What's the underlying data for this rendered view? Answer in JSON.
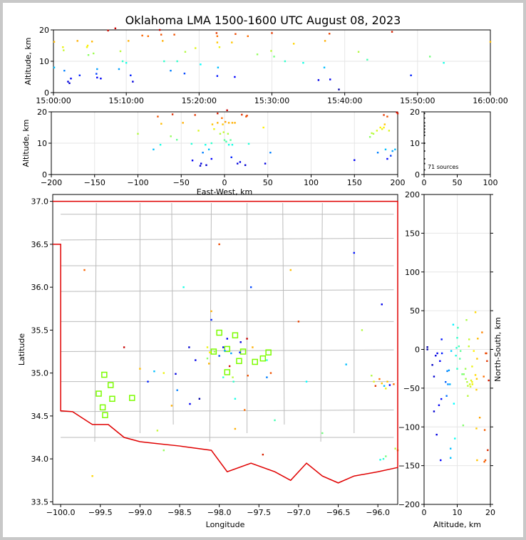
{
  "title": "Oklahoma LMA 1500-1600 UTC August 08, 2023",
  "colors": {
    "frame": "#c8c8c8",
    "border": "#e00000",
    "county": "#bbbbbb",
    "station": "#7cfc00",
    "grid": "#e6e6e6"
  },
  "chart_data": [
    {
      "type": "scatter",
      "id": "alt-time",
      "ylabel": "Altitude, km",
      "xlabel": "",
      "xlim": [
        0,
        60
      ],
      "ylim": [
        0,
        20
      ],
      "xticks": [
        0,
        10,
        20,
        30,
        40,
        50,
        60
      ],
      "xticklabels": [
        "15:00:00",
        "15:10:00",
        "15:20:00",
        "15:30:00",
        "15:40:00",
        "15:50:00",
        "16:00:00"
      ],
      "yticks": [
        0,
        10,
        20
      ],
      "yticklabels": [
        "0",
        "10",
        "20"
      ],
      "grid": true,
      "points": [
        [
          0.1,
          16.2
        ],
        [
          0.1,
          8
        ],
        [
          1.3,
          14.5
        ],
        [
          1.4,
          13.5
        ],
        [
          1.5,
          7
        ],
        [
          2.0,
          3.5
        ],
        [
          2.2,
          3
        ],
        [
          2.4,
          4.5
        ],
        [
          3.3,
          16.5
        ],
        [
          3.6,
          5.5
        ],
        [
          4.6,
          14.5
        ],
        [
          4.7,
          15
        ],
        [
          4.8,
          12
        ],
        [
          5.3,
          16.3
        ],
        [
          5.5,
          12.5
        ],
        [
          5.9,
          6
        ],
        [
          6.0,
          4.8
        ],
        [
          6.0,
          7.5
        ],
        [
          6.5,
          4.5
        ],
        [
          7.5,
          19.8
        ],
        [
          9.0,
          7.5
        ],
        [
          9.2,
          13.2
        ],
        [
          9.5,
          10
        ],
        [
          10.0,
          9.5
        ],
        [
          10.3,
          16.5
        ],
        [
          10.6,
          5.5
        ],
        [
          10.9,
          3.5
        ],
        [
          13.0,
          18
        ],
        [
          14.6,
          20
        ],
        [
          14.8,
          18.5
        ],
        [
          15.0,
          16.5
        ],
        [
          15.2,
          10
        ],
        [
          16.1,
          7
        ],
        [
          16.6,
          18.5
        ],
        [
          17.0,
          10
        ],
        [
          18.1,
          13
        ],
        [
          19.5,
          14.2
        ],
        [
          22.4,
          19
        ],
        [
          22.5,
          18
        ],
        [
          22.5,
          16
        ],
        [
          22.6,
          8
        ],
        [
          22.8,
          14.5
        ],
        [
          24.5,
          16
        ],
        [
          24.9,
          5
        ],
        [
          26.7,
          18
        ],
        [
          29.9,
          13.3
        ],
        [
          30.0,
          19
        ],
        [
          30.3,
          11.5
        ],
        [
          31.8,
          10
        ],
        [
          34.3,
          9.5
        ],
        [
          36.4,
          4
        ],
        [
          37.2,
          8
        ],
        [
          37.3,
          16.5
        ],
        [
          37.9,
          18.8
        ],
        [
          39.2,
          1
        ],
        [
          41.9,
          13
        ],
        [
          43.1,
          10.5
        ],
        [
          49.1,
          5.5
        ],
        [
          51.7,
          11.5
        ],
        [
          53.6,
          9.5
        ],
        [
          60.0,
          16.2
        ],
        [
          8.5,
          20.5
        ],
        [
          22.5,
          5.3
        ],
        [
          25.0,
          18.7
        ],
        [
          38.0,
          4.2
        ],
        [
          12.2,
          18.2
        ],
        [
          46.5,
          19.4
        ],
        [
          28.0,
          12.2
        ],
        [
          20.2,
          9.0
        ],
        [
          18.0,
          6.1
        ],
        [
          33.0,
          15.6
        ]
      ]
    },
    {
      "type": "scatter",
      "id": "alt-ew",
      "ylabel": "Altitude, km",
      "xlabel": "East-West, km",
      "xlim": [
        -200,
        200
      ],
      "ylim": [
        0,
        20
      ],
      "xticks": [
        -200,
        -150,
        -100,
        -50,
        0,
        50,
        100,
        150,
        200
      ],
      "xticklabels": [
        "−200",
        "−150",
        "−100",
        "−50",
        "0",
        "50",
        "100",
        "150",
        "200"
      ],
      "yticks": [
        0,
        10,
        20
      ],
      "yticklabels": [
        "0",
        "10",
        "20"
      ],
      "grid": true,
      "points": [
        [
          -100,
          13
        ],
        [
          -82,
          8
        ],
        [
          -77,
          18.5
        ],
        [
          -74,
          9.5
        ],
        [
          -73,
          16.2
        ],
        [
          -62,
          12.2
        ],
        [
          -60,
          19.2
        ],
        [
          -48,
          16.5
        ],
        [
          -38,
          9.8
        ],
        [
          -37,
          4.5
        ],
        [
          -34,
          19
        ],
        [
          -30,
          14
        ],
        [
          -28,
          2.8
        ],
        [
          -27,
          3.5
        ],
        [
          -25,
          7
        ],
        [
          -22,
          9.5
        ],
        [
          -15,
          10
        ],
        [
          -15,
          5
        ],
        [
          -14,
          16
        ],
        [
          -12,
          14.5
        ],
        [
          -8,
          19.5
        ],
        [
          -8,
          16.5
        ],
        [
          -5,
          13
        ],
        [
          -3,
          18
        ],
        [
          -2,
          16
        ],
        [
          -1,
          13.5
        ],
        [
          0,
          11
        ],
        [
          1,
          16.8
        ],
        [
          2,
          10.5
        ],
        [
          4,
          13
        ],
        [
          5,
          16.5
        ],
        [
          5,
          9.5
        ],
        [
          7,
          11
        ],
        [
          8,
          5.5
        ],
        [
          9,
          16.5
        ],
        [
          9,
          9.5
        ],
        [
          12,
          16.5
        ],
        [
          15,
          3.5
        ],
        [
          18,
          4
        ],
        [
          24,
          3
        ],
        [
          25,
          18.5
        ],
        [
          26,
          18.8
        ],
        [
          28,
          9.8
        ],
        [
          47,
          3.5
        ],
        [
          53,
          7
        ],
        [
          168,
          12
        ],
        [
          170,
          13.2
        ],
        [
          172,
          13
        ],
        [
          176,
          14
        ],
        [
          177,
          7
        ],
        [
          180,
          15
        ],
        [
          182,
          14.5
        ],
        [
          184,
          19
        ],
        [
          184,
          15
        ],
        [
          185,
          16
        ],
        [
          186,
          8
        ],
        [
          188,
          18.5
        ],
        [
          188,
          5
        ],
        [
          190,
          14
        ],
        [
          192,
          6
        ],
        [
          194,
          7.5
        ],
        [
          197,
          8
        ],
        [
          199,
          19.8
        ],
        [
          200,
          19.5
        ],
        [
          -21,
          3
        ],
        [
          3,
          20.5
        ],
        [
          20,
          19.1
        ],
        [
          45,
          15.0
        ],
        [
          -55,
          11.1
        ],
        [
          150,
          4.6
        ],
        [
          -18,
          8.0
        ]
      ]
    },
    {
      "type": "histogram",
      "id": "alt-count",
      "annotation": "71 sources",
      "xlim": [
        0,
        100
      ],
      "ylim": [
        0,
        20
      ],
      "xticks": [
        0,
        50,
        100
      ],
      "xticklabels": [
        "0",
        "50",
        "100"
      ],
      "yticks": [
        0,
        10,
        20
      ],
      "yticklabels": [
        "0",
        "10",
        "20"
      ],
      "bins": [
        [
          1,
          1.5
        ],
        [
          1,
          3.5
        ],
        [
          1,
          5
        ],
        [
          1,
          7.5
        ],
        [
          1,
          10
        ],
        [
          1,
          12.5
        ],
        [
          1,
          13.5
        ],
        [
          1,
          14.5
        ],
        [
          1,
          15.5
        ],
        [
          1,
          16.5
        ],
        [
          1,
          18
        ],
        [
          1,
          19.5
        ]
      ]
    },
    {
      "type": "scatter",
      "id": "plan-view",
      "ylabel": "Latitude",
      "xlabel": "Longitude",
      "xlim": [
        -100.1,
        -95.75
      ],
      "ylim": [
        33.47,
        37.08
      ],
      "xticks": [
        -100.0,
        -99.5,
        -99.0,
        -98.5,
        -98.0,
        -97.5,
        -97.0,
        -96.5,
        -96.0
      ],
      "xticklabels": [
        "−100.0",
        "−99.5",
        "−99.0",
        "−98.5",
        "−98.0",
        "−97.5",
        "−97.0",
        "−96.5",
        "−96.0"
      ],
      "yticks": [
        33.5,
        34.0,
        34.5,
        35.0,
        35.5,
        36.0,
        36.5,
        37.0
      ],
      "yticklabels": [
        "33.5",
        "34.0",
        "34.5",
        "35.0",
        "35.5",
        "36.0",
        "36.5",
        "37.0"
      ],
      "grid": false,
      "stations": [
        [
          -99.45,
          34.98
        ],
        [
          -99.37,
          34.86
        ],
        [
          -99.52,
          34.76
        ],
        [
          -99.35,
          34.7
        ],
        [
          -99.47,
          34.6
        ],
        [
          -99.44,
          34.51
        ],
        [
          -99.1,
          34.71
        ],
        [
          -98.07,
          35.25
        ],
        [
          -98.0,
          35.47
        ],
        [
          -97.9,
          35.28
        ],
        [
          -97.8,
          35.44
        ],
        [
          -97.75,
          35.14
        ],
        [
          -97.9,
          35.01
        ],
        [
          -97.7,
          35.25
        ],
        [
          -97.55,
          35.13
        ],
        [
          -97.45,
          35.17
        ],
        [
          -97.38,
          35.24
        ]
      ],
      "points": [
        [
          -99.0,
          35.05
        ],
        [
          -98.82,
          35.02
        ],
        [
          -98.7,
          35.0
        ],
        [
          -98.78,
          34.33
        ],
        [
          -98.53,
          34.8
        ],
        [
          -98.55,
          34.99
        ],
        [
          -98.38,
          35.3
        ],
        [
          -98.37,
          34.64
        ],
        [
          -98.1,
          35.72
        ],
        [
          -98.1,
          35.62
        ],
        [
          -98.15,
          35.3
        ],
        [
          -98.12,
          35.24
        ],
        [
          -98.15,
          35.17
        ],
        [
          -98.13,
          35.11
        ],
        [
          -98.06,
          35.25
        ],
        [
          -98.0,
          35.2
        ],
        [
          -97.95,
          35.3
        ],
        [
          -97.93,
          35.26
        ],
        [
          -97.9,
          35.4
        ],
        [
          -97.87,
          35.08
        ],
        [
          -97.85,
          35.23
        ],
        [
          -97.83,
          34.95
        ],
        [
          -97.82,
          34.9
        ],
        [
          -97.8,
          34.7
        ],
        [
          -97.8,
          34.35
        ],
        [
          -97.74,
          35.24
        ],
        [
          -97.73,
          35.36
        ],
        [
          -97.68,
          34.57
        ],
        [
          -97.65,
          35.4
        ],
        [
          -97.64,
          34.97
        ],
        [
          -97.58,
          35.3
        ],
        [
          -97.4,
          35.15
        ],
        [
          -97.4,
          34.95
        ],
        [
          -97.35,
          35.0
        ],
        [
          -97.95,
          34.95
        ],
        [
          -96.08,
          34.97
        ],
        [
          -96.05,
          34.9
        ],
        [
          -96.03,
          34.85
        ],
        [
          -95.98,
          34.93
        ],
        [
          -95.95,
          34.88
        ],
        [
          -95.92,
          34.85
        ],
        [
          -95.9,
          34.82
        ],
        [
          -95.88,
          34.9
        ],
        [
          -95.85,
          34.86
        ],
        [
          -95.8,
          34.87
        ],
        [
          -95.78,
          34.12
        ],
        [
          -95.75,
          34.1
        ],
        [
          -95.9,
          34.03
        ],
        [
          -95.93,
          34.0
        ],
        [
          -95.97,
          33.99
        ],
        [
          -98.3,
          35.15
        ],
        [
          -96.4,
          35.1
        ],
        [
          -98.6,
          34.62
        ],
        [
          -97.0,
          35.6
        ],
        [
          -98.25,
          34.7
        ],
        [
          -96.2,
          35.5
        ],
        [
          -97.3,
          34.45
        ],
        [
          -98.9,
          34.9
        ],
        [
          -96.7,
          34.3
        ],
        [
          -98.45,
          36.0
        ],
        [
          -97.1,
          36.2
        ],
        [
          -99.2,
          35.3
        ],
        [
          -96.3,
          36.4
        ],
        [
          -98.0,
          36.5
        ],
        [
          -95.95,
          35.8
        ],
        [
          -99.7,
          36.2
        ],
        [
          -97.45,
          34.05
        ],
        [
          -98.7,
          34.1
        ],
        [
          -96.9,
          34.9
        ],
        [
          -97.6,
          36.0
        ],
        [
          -99.6,
          33.8
        ]
      ]
    },
    {
      "type": "scatter",
      "id": "ns-alt",
      "ylabel": "North-South, km",
      "xlabel": "Altitude, km",
      "xlim": [
        0,
        20
      ],
      "ylim": [
        -200,
        200
      ],
      "xticks": [
        0,
        10,
        20
      ],
      "xticklabels": [
        "0",
        "10",
        "20"
      ],
      "yticks": [
        -200,
        -150,
        -100,
        -50,
        0,
        50,
        100,
        150,
        200
      ],
      "yticklabels": [
        "−200",
        "−150",
        "−100",
        "−50",
        "0",
        "50",
        "100",
        "150",
        "200"
      ],
      "grid": true,
      "points": [
        [
          1,
          3
        ],
        [
          1,
          0
        ],
        [
          2.5,
          -20
        ],
        [
          3,
          -35
        ],
        [
          3,
          -80
        ],
        [
          3.5,
          -8
        ],
        [
          4,
          -5
        ],
        [
          4.5,
          -72
        ],
        [
          4.8,
          -15
        ],
        [
          5,
          -143
        ],
        [
          5.2,
          -64
        ],
        [
          5.3,
          13
        ],
        [
          5.4,
          -5
        ],
        [
          6.5,
          -42
        ],
        [
          7,
          -28
        ],
        [
          7.2,
          -45
        ],
        [
          7.5,
          -27
        ],
        [
          7.8,
          -45
        ],
        [
          8,
          -128
        ],
        [
          8,
          -140
        ],
        [
          8.2,
          -2
        ],
        [
          9.3,
          -115
        ],
        [
          9.6,
          -8
        ],
        [
          9.8,
          2
        ],
        [
          10,
          15
        ],
        [
          10,
          -25
        ],
        [
          10.2,
          28
        ],
        [
          10.5,
          4
        ],
        [
          10.8,
          -12
        ],
        [
          11,
          -2
        ],
        [
          11.5,
          -32
        ],
        [
          12,
          -32
        ],
        [
          12.5,
          -25
        ],
        [
          12.6,
          -38
        ],
        [
          12.8,
          38
        ],
        [
          13,
          -42
        ],
        [
          13.2,
          -47
        ],
        [
          13.5,
          4
        ],
        [
          13.6,
          13
        ],
        [
          13.8,
          -45
        ],
        [
          14,
          -48
        ],
        [
          14.2,
          -40
        ],
        [
          14.5,
          -42
        ],
        [
          14.6,
          -45
        ],
        [
          15,
          -2
        ],
        [
          15.5,
          48
        ],
        [
          15.5,
          -33
        ],
        [
          15.8,
          -52
        ],
        [
          15.8,
          -102
        ],
        [
          15.9,
          -38
        ],
        [
          16,
          -143
        ],
        [
          16,
          -12
        ],
        [
          16.2,
          14
        ],
        [
          18,
          -35
        ],
        [
          18.2,
          -145
        ],
        [
          18.3,
          -104
        ],
        [
          18.5,
          -143
        ],
        [
          18.6,
          -5
        ],
        [
          18.8,
          -5
        ],
        [
          19,
          -15
        ],
        [
          19.2,
          -130
        ],
        [
          19.5,
          -40
        ],
        [
          6.8,
          -60
        ],
        [
          14.5,
          -22
        ],
        [
          9.0,
          -70
        ],
        [
          16.8,
          -88
        ],
        [
          11.8,
          -98
        ],
        [
          8.8,
          32
        ],
        [
          3.8,
          -110
        ],
        [
          17.5,
          22
        ],
        [
          13.2,
          -60
        ]
      ]
    }
  ]
}
